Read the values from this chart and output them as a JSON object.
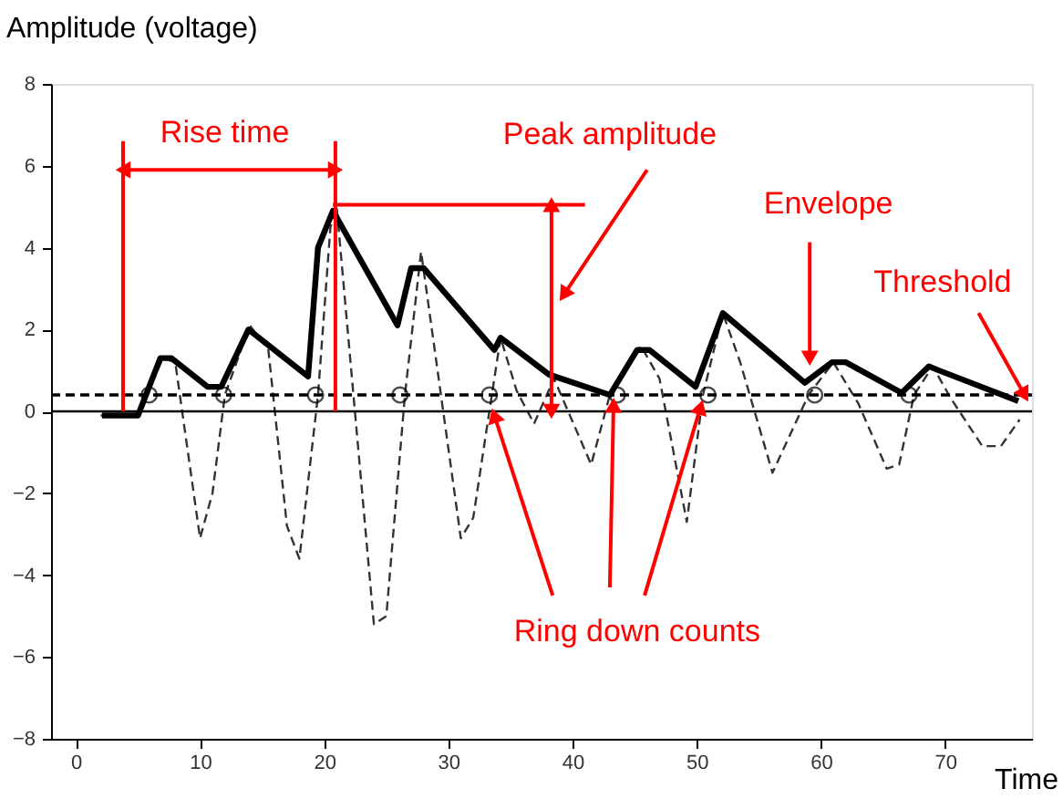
{
  "chart_data": {
    "type": "line",
    "xlabel": "Time",
    "ylabel": "Amplitude (voltage)",
    "xlim": [
      -2,
      77
    ],
    "ylim": [
      -8,
      8
    ],
    "xticks": [
      0,
      10,
      20,
      30,
      40,
      50,
      60,
      70
    ],
    "yticks": [
      -8,
      -6,
      -4,
      -2,
      0,
      2,
      4,
      6,
      8
    ],
    "grid": false,
    "series": [
      {
        "color": "#333333",
        "line_style": "dashed",
        "x": [
          2,
          5,
          7,
          8,
          10,
          11,
          12,
          14,
          15.5,
          17,
          18,
          19.5,
          20.5,
          21,
          24,
          25,
          26.5,
          27.8,
          31,
          32,
          33.5,
          34.2,
          35.5,
          36.9,
          38.5,
          41.5,
          43,
          45.5,
          47,
          49.2,
          50.5,
          52.1,
          53.5,
          56.1,
          59,
          61,
          63,
          65.3,
          66.3,
          67.5,
          69,
          70.5,
          73,
          74.5,
          76
        ],
        "values": [
          -0.1,
          -0.1,
          1.3,
          1.2,
          -3.1,
          -2,
          0.4,
          2.1,
          1.5,
          -2.8,
          -3.6,
          0.4,
          4.5,
          5.0,
          -5.2,
          -5.0,
          0.4,
          3.9,
          -3.1,
          -2.6,
          0.4,
          1.8,
          0.5,
          -0.3,
          0.8,
          -1.3,
          0.4,
          1.6,
          0.8,
          -2.7,
          0.4,
          2.4,
          1.2,
          -1.5,
          0.4,
          1.2,
          0.2,
          -1.4,
          -1.3,
          0.4,
          1.1,
          0.3,
          -0.85,
          -0.85,
          -0.2
        ]
      },
      {
        "color": "#000000",
        "line_style": "solid",
        "x": [
          2.1,
          5,
          6.8,
          7.7,
          10.6,
          11.7,
          13.9,
          18.7,
          19.5,
          20.7,
          25.9,
          27,
          28,
          33.7,
          34.2,
          38.1,
          43,
          45.2,
          46.2,
          49.9,
          52.1,
          58.7,
          60.9,
          62,
          66.5,
          68.7,
          69.5,
          75.9
        ],
        "values": [
          -0.1,
          -0.1,
          1.3,
          1.3,
          0.6,
          0.6,
          2.0,
          0.85,
          4.0,
          4.9,
          2.1,
          3.5,
          3.5,
          1.5,
          1.8,
          0.9,
          0.4,
          1.5,
          1.5,
          0.6,
          2.4,
          0.7,
          1.2,
          1.2,
          0.45,
          1.1,
          1.0,
          0.25
        ]
      },
      {
        "type": "scatter",
        "color": "#000000",
        "marker": "circle",
        "x": [
          5.9,
          11.9,
          19.3,
          26.1,
          33.3,
          43.6,
          50.9,
          59.5,
          67.1
        ],
        "values": [
          0.4,
          0.4,
          0.4,
          0.4,
          0.4,
          0.4,
          0.4,
          0.4,
          0.4
        ]
      }
    ],
    "ref_lines": [
      {
        "axis": "y",
        "value": 0.4,
        "color": "#000000",
        "line_style": "dashed"
      },
      {
        "axis": "y",
        "value": 0,
        "color": "#000000",
        "line_style": "solid"
      },
      {
        "axis": "y",
        "value": 5.05,
        "color": "#ff0000",
        "line_style": "solid"
      },
      {
        "axis": "x",
        "value": 3.8,
        "color": "#ff0000",
        "line_style": "solid"
      },
      {
        "axis": "x",
        "value": 20.9,
        "color": "#ff0000",
        "line_style": "solid"
      }
    ],
    "annotations": [
      "Rise time",
      "Peak amplitude",
      {
        "text": "Envelope",
        "x": 59.1,
        "y": 1.3
      },
      {
        "text": "Threshold",
        "x": 76.4,
        "y": 0.4
      },
      {
        "text": "Ring down counts",
        "x": 43.3,
        "y": 0.15
      }
    ]
  }
}
